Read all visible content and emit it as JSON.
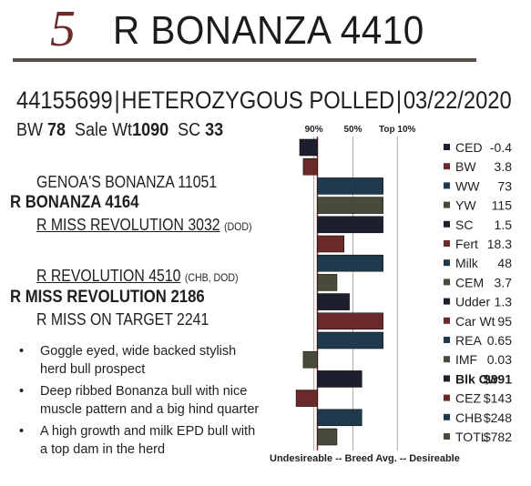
{
  "header": {
    "lot_number": "5",
    "bull_name": "R BONANZA 4410"
  },
  "id_line": {
    "registration": "44155699",
    "polled_status": "HETEROZYGOUS POLLED",
    "birth_date": "03/22/2020",
    "separator": "|"
  },
  "stats": {
    "bw_label": "BW",
    "bw_value": "78",
    "sale_wt_label": "Sale Wt",
    "sale_wt_value": "1090",
    "sc_label": "SC",
    "sc_value": "33"
  },
  "pedigree": {
    "sire_sire": "GENOA'S BONANZA 11051",
    "sire": "R BONANZA 4164",
    "sire_dam": "R MISS REVOLUTION 3032",
    "sire_dam_tag": "(DOD)",
    "dam_sire": "R REVOLUTION 4510",
    "dam_sire_tag": "(CHB, DOD)",
    "dam": "R MISS REVOLUTION 2186",
    "dam_dam": "R MISS ON TARGET 2241"
  },
  "comments": [
    "Goggle eyed, wide backed stylish herd bull prospect",
    "Deep ribbed Bonanza bull with nice muscle pattern and a big hind quarter",
    "A high growth and milk EPD bull with a top dam in the herd"
  ],
  "chart_data": {
    "type": "bar",
    "title": "",
    "scale_labels": [
      "90%",
      "50%",
      "Top 10%"
    ],
    "xlabel": "Undesireable -- Breed Avg. -- Desireable",
    "ylabel": "",
    "xlim": [
      -30,
      70
    ],
    "grid": true,
    "orientation": "horizontal",
    "traits": [
      {
        "trait": "CED",
        "value": "-0.4",
        "bar": -10,
        "color": "#1e1f2e",
        "bold": false
      },
      {
        "trait": "BW",
        "value": "3.8",
        "bar": -8,
        "color": "#6b2a2a",
        "bold": false
      },
      {
        "trait": "WW",
        "value": "73",
        "bar": 37,
        "color": "#1f3a4d",
        "bold": false
      },
      {
        "trait": "YW",
        "value": "115",
        "bar": 37,
        "color": "#4a4a3a",
        "bold": false
      },
      {
        "trait": "SC",
        "value": "1.5",
        "bar": 37,
        "color": "#1e1f2e",
        "bold": false
      },
      {
        "trait": "Fert",
        "value": "18.3",
        "bar": 15,
        "color": "#6b2a2a",
        "bold": false
      },
      {
        "trait": "Milk",
        "value": "48",
        "bar": 37,
        "color": "#1f3a4d",
        "bold": false
      },
      {
        "trait": "CEM",
        "value": "3.7",
        "bar": 11,
        "color": "#4a4a3a",
        "bold": false
      },
      {
        "trait": "Udder",
        "value": "1.3",
        "bar": 18,
        "color": "#1e1f2e",
        "bold": false
      },
      {
        "trait": "Car Wt",
        "value": "95",
        "bar": 37,
        "color": "#6b2a2a",
        "bold": false
      },
      {
        "trait": "REA",
        "value": "0.65",
        "bar": 37,
        "color": "#1f3a4d",
        "bold": false
      },
      {
        "trait": "IMF",
        "value": "0.03",
        "bar": -8,
        "color": "#4a4a3a",
        "bold": false
      },
      {
        "trait": "Blk Cw",
        "value": "$391",
        "bar": 25,
        "color": "#1e1f2e",
        "bold": true
      },
      {
        "trait": "CEZ",
        "value": "$143",
        "bar": -12,
        "color": "#6b2a2a",
        "bold": false
      },
      {
        "trait": "CHB",
        "value": "$248",
        "bar": 25,
        "color": "#1f3a4d",
        "bold": false
      },
      {
        "trait": "TOTL",
        "value": "$782",
        "bar": 11,
        "color": "#4a4a3a",
        "bold": false
      }
    ]
  }
}
